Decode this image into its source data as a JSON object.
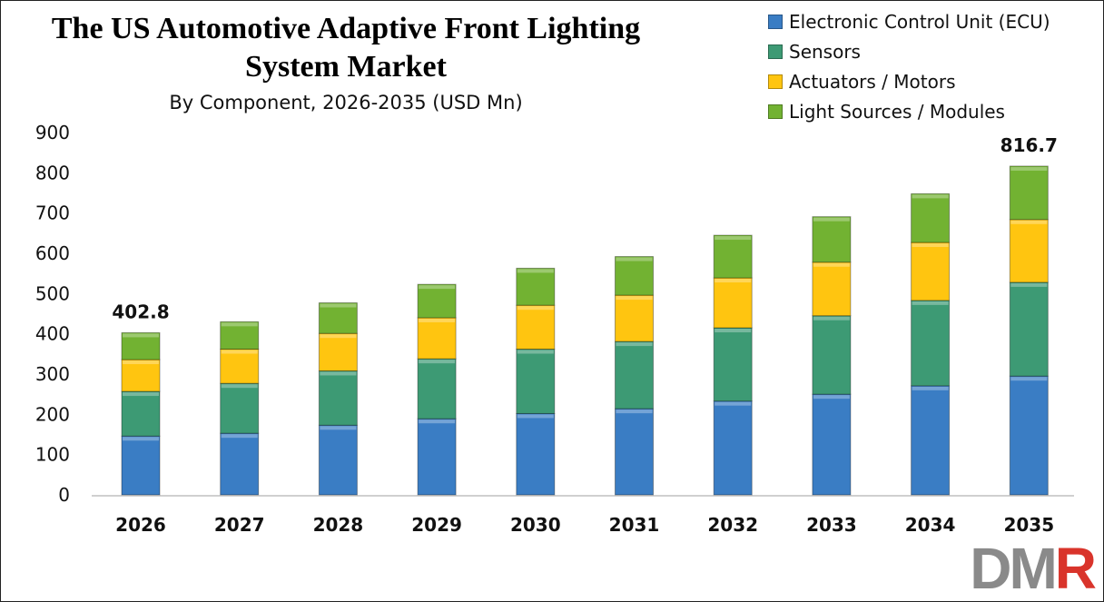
{
  "chart_data": {
    "type": "bar",
    "stacked": true,
    "title_line1": "The US Automotive Adaptive Front Lighting",
    "title_line2": "System Market",
    "subtitle": "By Component, 2026-2035 (USD Mn)",
    "xlabel": "",
    "ylabel": "",
    "ylim": [
      0,
      900
    ],
    "yticks": [
      "0",
      "100",
      "200",
      "300",
      "400",
      "500",
      "600",
      "700",
      "800",
      "900"
    ],
    "grid": false,
    "legend_position": "top-right",
    "categories": [
      "2026",
      "2027",
      "2028",
      "2029",
      "2030",
      "2031",
      "2032",
      "2033",
      "2034",
      "2035"
    ],
    "series": [
      {
        "name": "Electronic Control Unit (ECU)",
        "color": "#3a7dc4",
        "values": [
          146,
          153,
          173,
          189,
          202,
          214,
          233,
          250,
          271,
          295
        ]
      },
      {
        "name": "Sensors",
        "color": "#3d9a74",
        "values": [
          111,
          124,
          135,
          149,
          160,
          167,
          182,
          195,
          212,
          233
        ]
      },
      {
        "name": "Actuators / Motors",
        "color": "#ffc510",
        "values": [
          79,
          85,
          93,
          102,
          109,
          115,
          124,
          133,
          144,
          156
        ]
      },
      {
        "name": "Light Sources / Modules",
        "color": "#72b232",
        "values": [
          66.8,
          68,
          76,
          83,
          92,
          96,
          106,
          113,
          121,
          132.7
        ]
      }
    ],
    "data_labels": [
      {
        "category": "2026",
        "text": "402.8"
      },
      {
        "category": "2035",
        "text": "816.7"
      }
    ]
  },
  "logo": {
    "text": "DMR",
    "colors": [
      "#8a8a8a",
      "#d9342b"
    ]
  }
}
